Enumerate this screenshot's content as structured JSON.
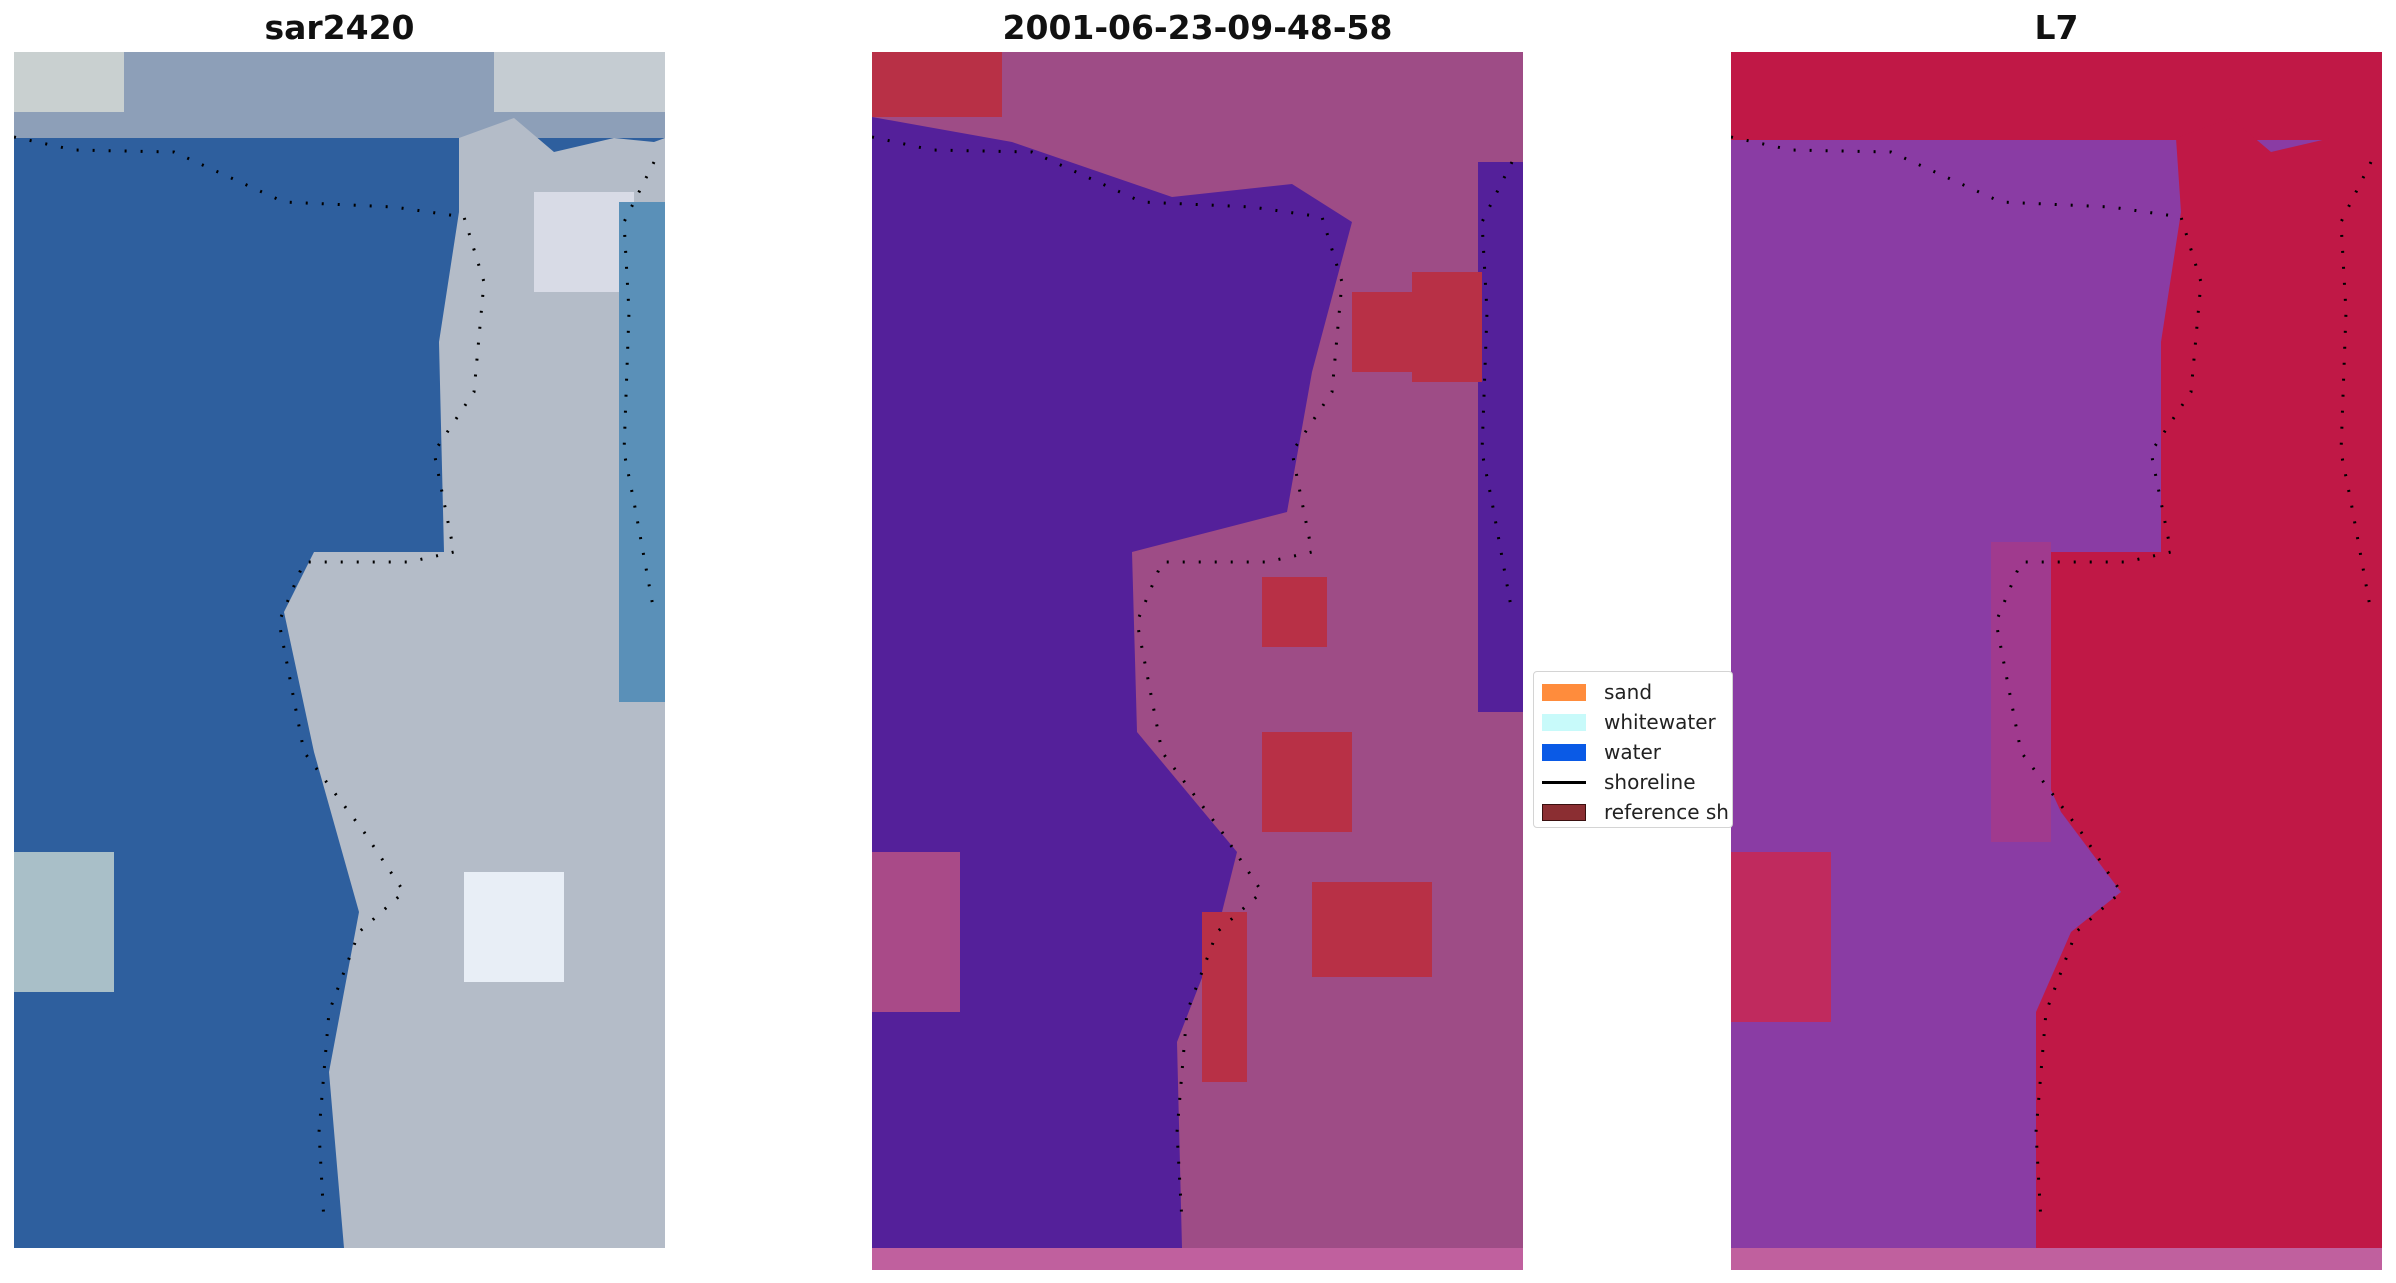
{
  "panels": [
    {
      "title": "sar2420"
    },
    {
      "title": "2001-06-23-09-48-58"
    },
    {
      "title": "L7"
    }
  ],
  "legend": {
    "items": [
      {
        "label": "sand",
        "color": "#ff8c3c",
        "kind": "patch"
      },
      {
        "label": "whitewater",
        "color": "#c8fafa",
        "kind": "patch"
      },
      {
        "label": "water",
        "color": "#0a5ae6",
        "kind": "patch"
      },
      {
        "label": "shoreline",
        "color": "#000000",
        "kind": "line"
      },
      {
        "label": "reference sh",
        "color": "#8b2e32",
        "kind": "patch"
      }
    ]
  },
  "colors": {
    "water_rgb": "#2e5f9e",
    "land_rgb": "#b4bcc8",
    "classified_water": "#54209a",
    "classified_land": "#9e4c86",
    "classified_sand": "#b83046",
    "index_water": "#8a3ca4",
    "index_land": "#c01846"
  }
}
